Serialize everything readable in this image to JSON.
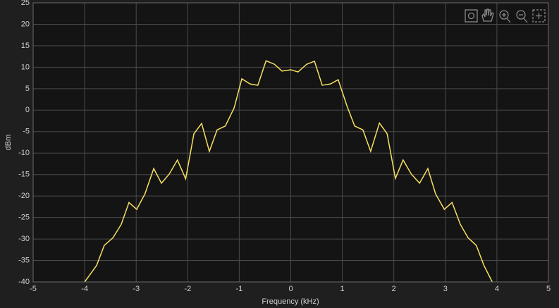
{
  "chart_data": {
    "type": "line",
    "xlabel": "Frequency (kHz)",
    "ylabel": "dBm",
    "xlim": [
      -5,
      5
    ],
    "ylim": [
      -40,
      25
    ],
    "xticks": [
      -5,
      -4,
      -3,
      -2,
      -1,
      0,
      1,
      2,
      3,
      4,
      5
    ],
    "yticks": [
      -40,
      -35,
      -30,
      -25,
      -20,
      -15,
      -10,
      -5,
      0,
      5,
      10,
      15,
      20,
      25
    ],
    "grid": true,
    "series": [
      {
        "color": "#f7e060",
        "x": [
          -4.0,
          -3.77,
          -3.62,
          -3.45,
          -3.29,
          -3.14,
          -2.99,
          -2.83,
          -2.66,
          -2.51,
          -2.36,
          -2.2,
          -2.04,
          -1.88,
          -1.73,
          -1.58,
          -1.43,
          -1.27,
          -1.1,
          -0.95,
          -0.79,
          -0.64,
          -0.48,
          -0.32,
          -0.17,
          0.0,
          0.14,
          0.31,
          0.46,
          0.61,
          0.77,
          0.92,
          1.09,
          1.24,
          1.4,
          1.55,
          1.72,
          1.87,
          2.03,
          2.18,
          2.34,
          2.5,
          2.66,
          2.81,
          2.98,
          3.13,
          3.29,
          3.44,
          3.6,
          3.75,
          3.91
        ],
        "values": [
          -40,
          -36.2,
          -31.5,
          -29.7,
          -26.6,
          -21.5,
          -23.1,
          -19.5,
          -13.6,
          -17.0,
          -14.9,
          -11.6,
          -16.0,
          -5.5,
          -3.1,
          -9.6,
          -4.6,
          -3.7,
          0.5,
          7.3,
          6.1,
          5.8,
          11.5,
          10.7,
          9.1,
          9.4,
          8.9,
          10.7,
          11.4,
          5.8,
          6.1,
          7.1,
          1.0,
          -3.7,
          -4.6,
          -9.6,
          -3.0,
          -5.5,
          -15.9,
          -11.6,
          -14.9,
          -17.0,
          -13.6,
          -19.5,
          -23.1,
          -21.5,
          -26.6,
          -29.7,
          -31.5,
          -36.2,
          -40
        ]
      }
    ]
  }
}
